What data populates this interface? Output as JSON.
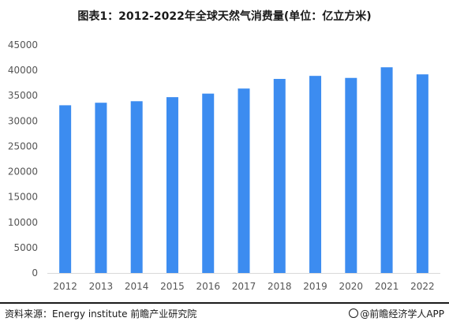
{
  "title": "图表1：2012-2022年全球天然气消费量(单位：亿立方米)",
  "source_text": "资料来源：Energy institute 前瞻产业研究院",
  "brand_text": "@前瞻经济学人APP",
  "colors": {
    "bar": "#3c8cf0",
    "axis": "#d9d9d9"
  },
  "chart_data": {
    "type": "bar",
    "title": "图表1：2012-2022年全球天然气消费量(单位：亿立方米)",
    "xlabel": "",
    "ylabel": "",
    "categories": [
      "2012",
      "2013",
      "2014",
      "2015",
      "2016",
      "2017",
      "2018",
      "2019",
      "2020",
      "2021",
      "2022"
    ],
    "values": [
      33100,
      33600,
      33900,
      34700,
      35400,
      36400,
      38300,
      38900,
      38500,
      40600,
      39200
    ],
    "ylim": [
      0,
      45000
    ],
    "yticks": [
      0,
      5000,
      10000,
      15000,
      20000,
      25000,
      30000,
      35000,
      40000,
      45000
    ],
    "ytick_labels": [
      "0",
      "5000",
      "10000",
      "15000",
      "20000",
      "25000",
      "30000",
      "35000",
      "40000",
      "45000"
    ],
    "grid": false,
    "legend": "none"
  }
}
